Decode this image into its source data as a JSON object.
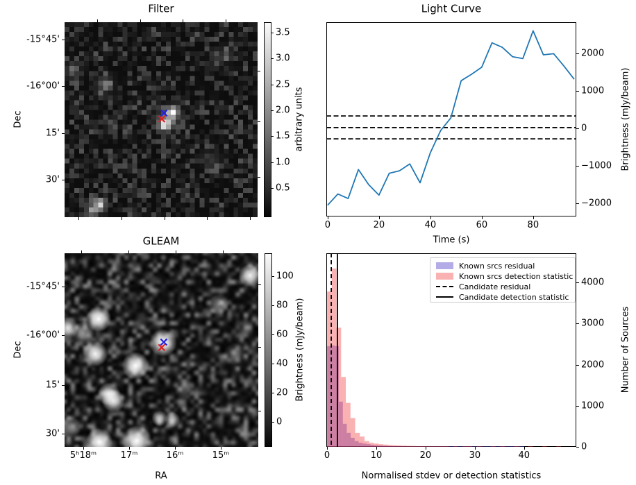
{
  "figure": {
    "background": "#ffffff"
  },
  "chart_data": [
    {
      "id": "filter",
      "type": "heatmap",
      "title": "Filter",
      "xlabel": "",
      "ylabel": "Dec",
      "ytick_labels": [
        "-15°45'",
        "-16°00'",
        "15'",
        "30'"
      ],
      "colorbar": {
        "label": "arbitrary units",
        "tick_labels": [
          "3.5",
          "3.0",
          "2.5",
          "2.0",
          "1.5",
          "1.0",
          "0.5"
        ],
        "value_range": [
          -0.06,
          3.7
        ]
      },
      "cmap": "gray",
      "noise": {
        "seed": 11,
        "grid": 40,
        "base": 0.05,
        "amp": 0.28
      },
      "blobs": [
        {
          "x": 21.9,
          "y": 17.9,
          "a": 0.82,
          "s": 0.75
        },
        {
          "x": 20.2,
          "y": 20.5,
          "a": 0.72,
          "s": 0.8
        },
        {
          "x": 21.0,
          "y": 19.2,
          "a": 0.35,
          "s": 1.5
        },
        {
          "x": 6.9,
          "y": 36.9,
          "a": 0.55,
          "s": 0.8
        },
        {
          "x": 5.3,
          "y": 38.2,
          "a": 0.5,
          "s": 0.9
        },
        {
          "x": 7.8,
          "y": 12.2,
          "a": 0.28,
          "s": 1.2
        },
        {
          "x": 1.2,
          "y": 9.5,
          "a": 0.22,
          "s": 1.2
        },
        {
          "x": 33.0,
          "y": 6.0,
          "a": 0.15,
          "s": 1.2
        },
        {
          "x": 30.0,
          "y": 28.0,
          "a": 0.15,
          "s": 1.3
        }
      ],
      "markers": [
        {
          "name": "candidate-position-marker",
          "x": 0.515,
          "y": 0.466,
          "color": "#2222dd"
        },
        {
          "name": "catalogue-position-marker",
          "x": 0.5035,
          "y": 0.4965,
          "color": "#dd2222"
        }
      ]
    },
    {
      "id": "light_curve",
      "type": "line",
      "title": "Light Curve",
      "xlabel": "Time (s)",
      "ylabel": "Brightness (mJy/beam)",
      "x": [
        0,
        4,
        8,
        12,
        16,
        20,
        24,
        28,
        32,
        36,
        40,
        44,
        48,
        52,
        56,
        60,
        64,
        68,
        72,
        76,
        80,
        84,
        88,
        92,
        96
      ],
      "y": [
        -2050,
        -1750,
        -1870,
        -1100,
        -1500,
        -1780,
        -1200,
        -1130,
        -950,
        -1450,
        -650,
        -60,
        280,
        1270,
        1440,
        1630,
        2280,
        2160,
        1910,
        1860,
        2600,
        1960,
        1990,
        1660,
        1310
      ],
      "line_color": "#1f77b4",
      "dashed_hlines": [
        330,
        20,
        -280
      ],
      "xticks": [
        0,
        20,
        40,
        60,
        80
      ],
      "xtick_labels": [
        "0",
        "20",
        "40",
        "60",
        "80"
      ],
      "yticks": [
        -2000,
        -1000,
        0,
        1000,
        2000
      ],
      "ytick_labels": [
        "−2000",
        "−1000",
        "0",
        "1000",
        "2000"
      ],
      "xlim": [
        -0.5,
        96.8
      ],
      "ylim": [
        -2350,
        2830
      ],
      "grid": false,
      "legend_position": "none"
    },
    {
      "id": "gleam",
      "type": "heatmap",
      "title": "GLEAM",
      "xlabel": "RA",
      "ylabel": "Dec",
      "xtick_labels": [
        "5ʰ18ᵐ",
        "17ᵐ",
        "16ᵐ",
        "15ᵐ"
      ],
      "ytick_labels": [
        "-15°45'",
        "-16°00'",
        "15'",
        "30'"
      ],
      "colorbar": {
        "label": "Brightness (mJy/beam)",
        "tick_labels": [
          "100",
          "80",
          "60",
          "40",
          "20",
          "0"
        ],
        "value_range": [
          -17,
          116
        ]
      },
      "cmap": "gray",
      "noise": {
        "seed": 29,
        "grid": 48,
        "base": 0.04,
        "amp": 0.5
      },
      "blobs": [
        {
          "x": 0.176,
          "y": 0.34,
          "a": 1.0,
          "s": 0.022
        },
        {
          "x": 0.014,
          "y": 0.387,
          "a": 0.8,
          "s": 0.02
        },
        {
          "x": 0.957,
          "y": 0.115,
          "a": 0.95,
          "s": 0.02
        },
        {
          "x": 0.509,
          "y": 0.462,
          "a": 1.0,
          "s": 0.024
        },
        {
          "x": 0.158,
          "y": 0.52,
          "a": 0.95,
          "s": 0.022
        },
        {
          "x": 0.366,
          "y": 0.581,
          "a": 1.0,
          "s": 0.024
        },
        {
          "x": 0.228,
          "y": 0.728,
          "a": 0.85,
          "s": 0.02
        },
        {
          "x": 0.252,
          "y": 0.762,
          "a": 0.85,
          "s": 0.02
        },
        {
          "x": 0.491,
          "y": 0.853,
          "a": 0.7,
          "s": 0.014
        },
        {
          "x": 0.556,
          "y": 0.86,
          "a": 0.7,
          "s": 0.014
        },
        {
          "x": 0.179,
          "y": 0.975,
          "a": 1.0,
          "s": 0.024
        },
        {
          "x": 0.373,
          "y": 0.968,
          "a": 1.0,
          "s": 0.026
        },
        {
          "x": 0.796,
          "y": 0.265,
          "a": 0.45,
          "s": 0.018
        },
        {
          "x": 0.097,
          "y": 0.412,
          "a": 0.5,
          "s": 0.02
        },
        {
          "x": 0.025,
          "y": 0.9,
          "a": 0.45,
          "s": 0.02
        },
        {
          "x": 0.88,
          "y": 0.52,
          "a": 0.3,
          "s": 0.02
        },
        {
          "x": 0.62,
          "y": 0.7,
          "a": 0.3,
          "s": 0.018
        }
      ],
      "markers": [
        {
          "name": "candidate-position-marker",
          "x": 0.512,
          "y": 0.459,
          "color": "#2222dd"
        },
        {
          "name": "catalogue-position-marker",
          "x": 0.501,
          "y": 0.487,
          "color": "#dd2222"
        }
      ]
    },
    {
      "id": "histogram",
      "type": "bar",
      "title": "",
      "xlabel": "Normalised stdev or detection statistics",
      "ylabel": "Number of Sources",
      "series": [
        {
          "name": "Known srcs residual",
          "color": "rgba(106,90,205,0.5)",
          "bin_start": 0,
          "bin_width": 0.8,
          "values": [
            2450,
            2470,
            2450,
            1100,
            560,
            340,
            220,
            140,
            100,
            80,
            65,
            50,
            40,
            32,
            26,
            21,
            17,
            14,
            12,
            10,
            9,
            8,
            7,
            6,
            6,
            5,
            5,
            4,
            4,
            4,
            3,
            3,
            3,
            3,
            2,
            2,
            2,
            2,
            2,
            2,
            1,
            1,
            1,
            1,
            1,
            1,
            1,
            1,
            1,
            1
          ]
        },
        {
          "name": "Known srcs detection statistic",
          "color": "rgba(240,60,60,0.4)",
          "bin_start": 0,
          "bin_width": 0.95,
          "values": [
            3780,
            4340,
            2900,
            1700,
            1070,
            700,
            340,
            250,
            140,
            100,
            80,
            65,
            55,
            45,
            38,
            32,
            28,
            24,
            21,
            18,
            16,
            14,
            13,
            12,
            11,
            10,
            0,
            9,
            0,
            8,
            7,
            0,
            6,
            0,
            0,
            5,
            0,
            5,
            0,
            0,
            4,
            0,
            0,
            4,
            0,
            0,
            3,
            0,
            0,
            8
          ]
        }
      ],
      "vlines": [
        {
          "label": "Candidate residual",
          "style": "dashed",
          "x": 0.85,
          "color": "#000000"
        },
        {
          "label": "Candidate detection statistic",
          "style": "solid",
          "x": 2.1,
          "color": "#000000"
        }
      ],
      "xticks": [
        0,
        10,
        20,
        30,
        40
      ],
      "xtick_labels": [
        "0",
        "10",
        "20",
        "30",
        "40"
      ],
      "yticks": [
        0,
        1000,
        2000,
        3000,
        4000
      ],
      "ytick_labels": [
        "0",
        "1000",
        "2000",
        "3000",
        "4000"
      ],
      "xlim": [
        -0.15,
        50.6
      ],
      "ylim": [
        0,
        4712
      ],
      "legend_position": "upper right"
    }
  ]
}
